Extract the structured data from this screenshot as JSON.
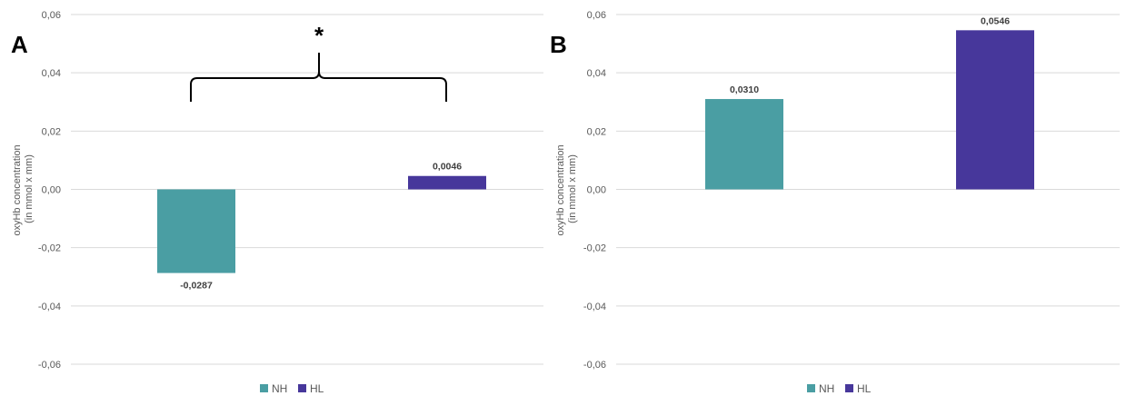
{
  "colors": {
    "NH": "#4a9ea3",
    "HL": "#47379b",
    "grid": "#d9d9d9",
    "text": "#595959"
  },
  "chart_data": [
    {
      "type": "bar",
      "panel_label": "A",
      "categories": [
        "NH",
        "HL"
      ],
      "values": [
        -0.0287,
        0.0046
      ],
      "data_labels": [
        "-0,0287",
        "0,0046"
      ],
      "ylabel_lines": [
        "oxyHb concentration",
        "(in mmol x mm)"
      ],
      "ylim": [
        -0.06,
        0.06
      ],
      "yticks": [
        "-0,06",
        "-0,04",
        "-0,02",
        "0,00",
        "0,02",
        "0,04",
        "0,06"
      ],
      "grid": true,
      "legend": {
        "position": "bottom",
        "entries": [
          "NH",
          "HL"
        ]
      },
      "annotation": {
        "symbol": "*",
        "type": "significance-brace"
      }
    },
    {
      "type": "bar",
      "panel_label": "B",
      "categories": [
        "NH",
        "HL"
      ],
      "values": [
        0.031,
        0.0546
      ],
      "data_labels": [
        "0,0310",
        "0,0546"
      ],
      "ylabel_lines": [
        "oxyHb concentration",
        "(in mmol x mm)"
      ],
      "ylim": [
        -0.06,
        0.06
      ],
      "yticks": [
        "-0,06",
        "-0,04",
        "-0,02",
        "0,00",
        "0,02",
        "0,04",
        "0,06"
      ],
      "grid": true,
      "legend": {
        "position": "bottom",
        "entries": [
          "NH",
          "HL"
        ]
      }
    }
  ]
}
